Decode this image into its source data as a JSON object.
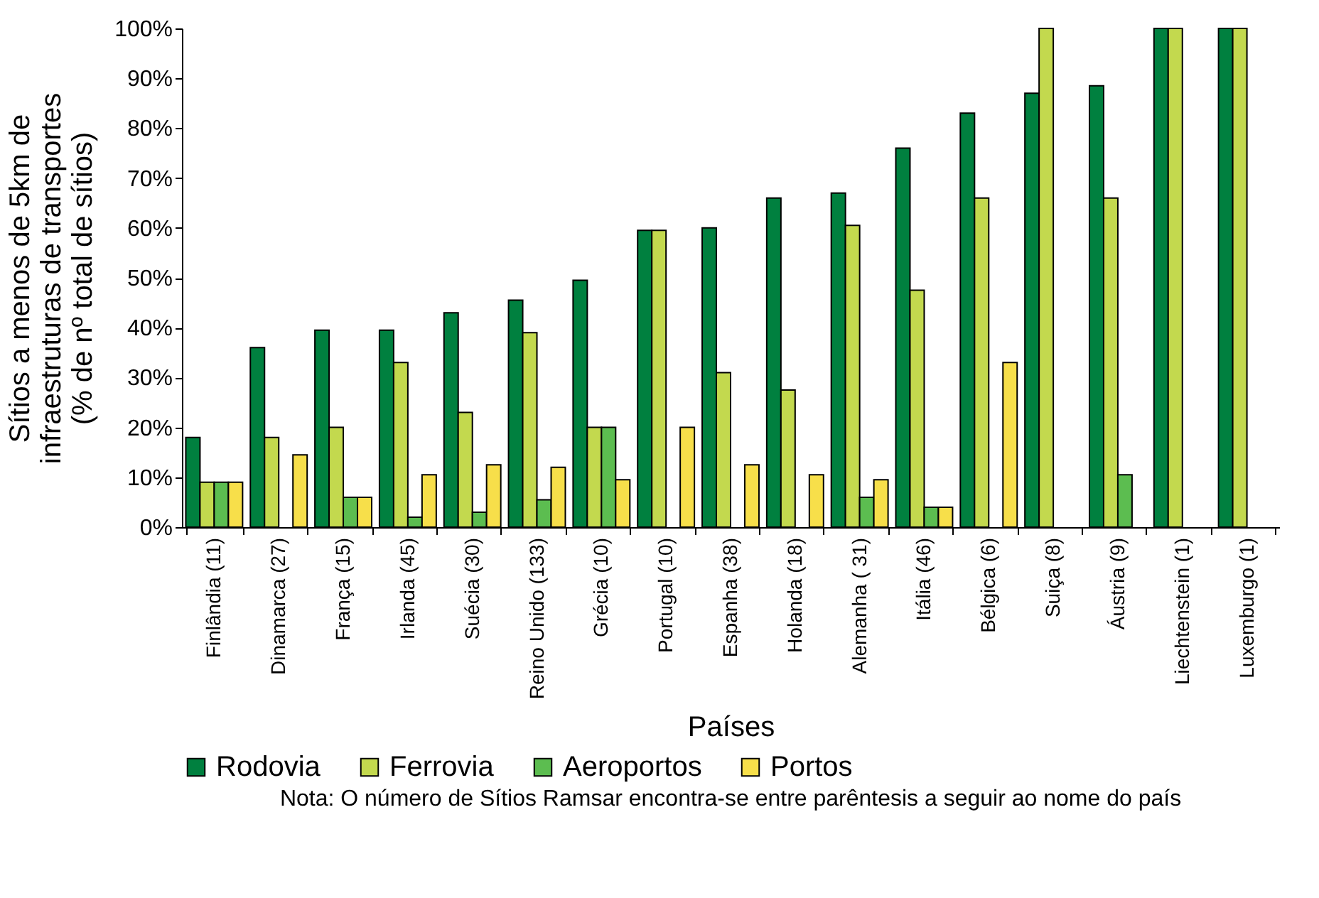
{
  "chart_data": {
    "type": "bar",
    "categories": [
      "Finlândia (11)",
      "Dinamarca (27)",
      "França (15)",
      "Irlanda (45)",
      "Suécia (30)",
      "Reino Unido (133)",
      "Grécia (10)",
      "Portugal (10)",
      "Espanha (38)",
      "Holanda (18)",
      "Alemanha ( 31)",
      "Itália (46)",
      "Bélgica (6)",
      "Suiça (8)",
      "Áustria (9)",
      "Liechtenstein (1)",
      "Luxemburgo (1)"
    ],
    "series": [
      {
        "name": "Rodovia",
        "color": "#00803f",
        "values": [
          18,
          36,
          39.5,
          39.5,
          43,
          45.5,
          49.5,
          59.5,
          60,
          66,
          67,
          76,
          83,
          87,
          88.5,
          100,
          100
        ]
      },
      {
        "name": "Ferrovia",
        "color": "#c3d94e",
        "values": [
          9,
          18,
          20,
          33,
          23,
          39,
          20,
          59.5,
          31,
          27.5,
          60.5,
          47.5,
          66,
          100,
          66,
          100,
          100
        ]
      },
      {
        "name": "Aeroportos",
        "color": "#5cbd50",
        "values": [
          9,
          null,
          6,
          2,
          3,
          5.5,
          20,
          null,
          null,
          null,
          6,
          4,
          null,
          null,
          10.5,
          null,
          null
        ]
      },
      {
        "name": "Portos",
        "color": "#f7df4a",
        "values": [
          9,
          14.5,
          6,
          10.5,
          12.5,
          12,
          9.5,
          20,
          12.5,
          10.5,
          9.5,
          4,
          33,
          null,
          null,
          null,
          null
        ]
      }
    ],
    "xlabel": "Países",
    "ylabel": "Sítios a menos de 5km de\ninfraestruturas de transportes\n(% de nº total de sítios)",
    "ylim": [
      0,
      100
    ],
    "yticks": [
      {
        "value": 0,
        "label": "0%"
      },
      {
        "value": 10,
        "label": "10%"
      },
      {
        "value": 20,
        "label": "20%"
      },
      {
        "value": 30,
        "label": "30%"
      },
      {
        "value": 40,
        "label": "40%"
      },
      {
        "value": 50,
        "label": "50%"
      },
      {
        "value": 60,
        "label": "60%"
      },
      {
        "value": 70,
        "label": "70%"
      },
      {
        "value": 80,
        "label": "80%"
      },
      {
        "value": 90,
        "label": "90%"
      },
      {
        "value": 100,
        "label": "100%"
      }
    ],
    "annotations": [
      "Nota: O número de Sítios Ramsar encontra-se entre parêntesis a seguir ao nome do país"
    ],
    "legend": "bottom",
    "grid": false
  }
}
